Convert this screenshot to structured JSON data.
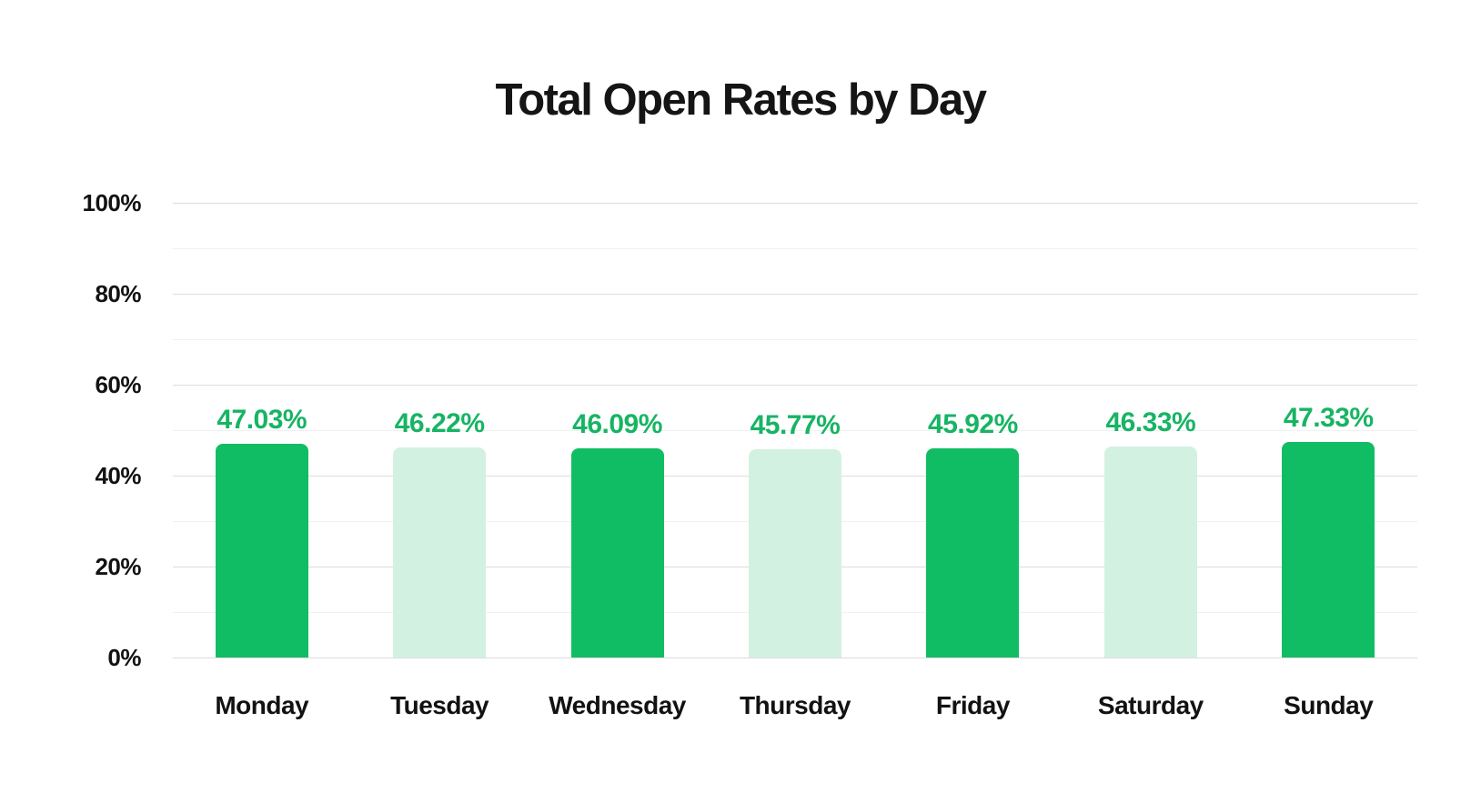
{
  "page": {
    "background": "#ffffff"
  },
  "chart_data": {
    "type": "bar",
    "title": "Total Open Rates by Day",
    "categories": [
      "Monday",
      "Tuesday",
      "Wednesday",
      "Thursday",
      "Friday",
      "Saturday",
      "Sunday"
    ],
    "values": [
      47.03,
      46.22,
      46.09,
      45.77,
      45.92,
      46.33,
      47.33
    ],
    "value_labels": [
      "47.03%",
      "46.22%",
      "46.09%",
      "45.77%",
      "45.92%",
      "46.33%",
      "47.33%"
    ],
    "bar_colors": [
      "#11BD64",
      "#D3F1E1",
      "#11BD64",
      "#D3F1E1",
      "#11BD64",
      "#D3F1E1",
      "#11BD64"
    ],
    "value_label_color": "#17B464",
    "xlabel": "",
    "ylabel": "",
    "axis": {
      "min": 0,
      "max": 100,
      "tick_values": [
        0,
        20,
        40,
        60,
        80,
        100
      ],
      "tick_labels": [
        "0%",
        "20%",
        "40%",
        "60%",
        "80%",
        "100%"
      ],
      "minor_step": 10,
      "major_step": 20
    },
    "grid": "on",
    "legend": "none",
    "colors": {
      "dark_green": "#11BD64",
      "light_green": "#D3F1E1",
      "major_gridline": "#dcdcdc",
      "minor_gridline": "#f1f1f1",
      "text": "#121212"
    }
  }
}
